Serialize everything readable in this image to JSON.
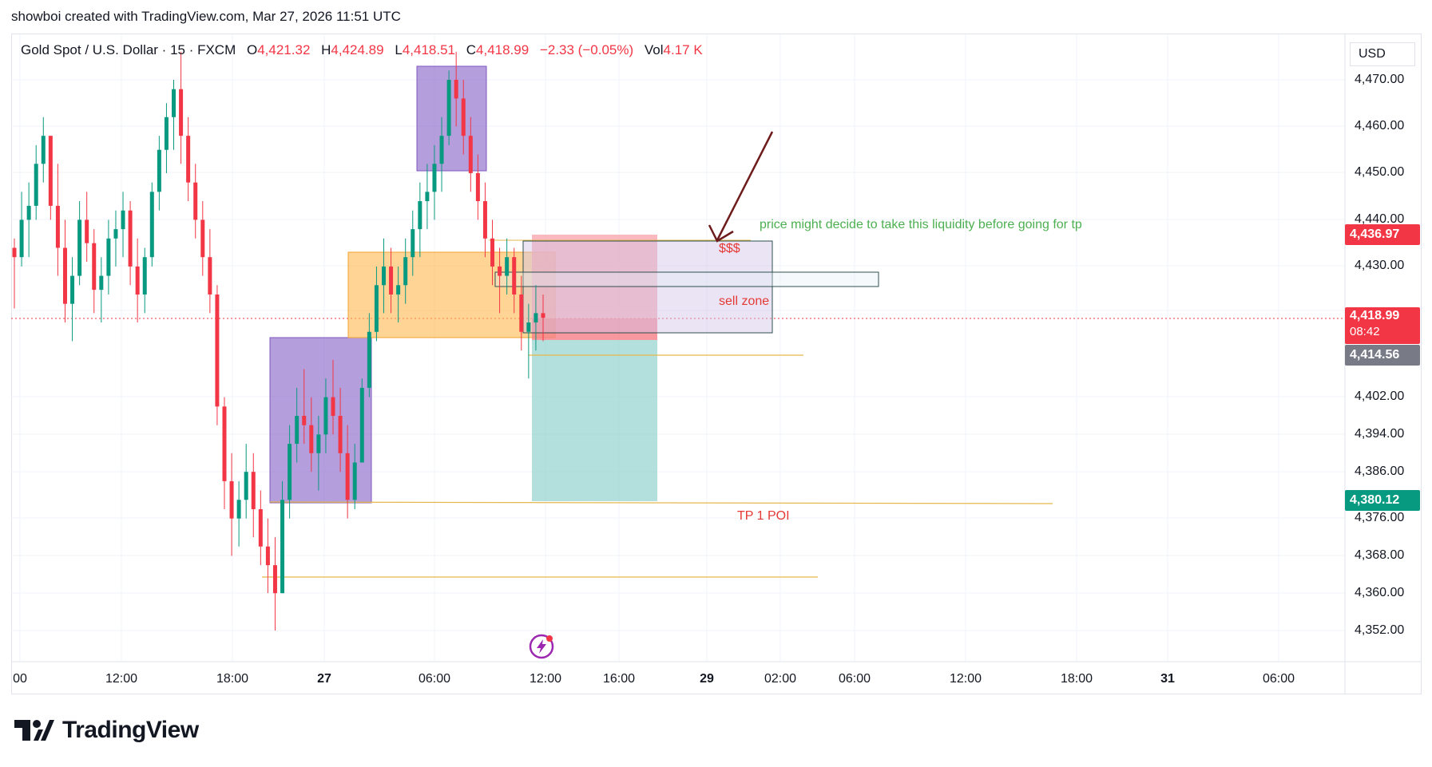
{
  "header": {
    "attribution": "showboi created with TradingView.com, Mar 27, 2026 11:51 UTC"
  },
  "symbol": {
    "name": "Gold Spot / U.S. Dollar · 15 · FXCM",
    "open_key": "O",
    "open": "4,421.32",
    "high_key": "H",
    "high": "4,424.89",
    "low_key": "L",
    "low": "4,418.51",
    "close_key": "C",
    "close": "4,418.99",
    "change": "−2.33 (−0.05%)",
    "vol_key": "Vol",
    "vol": "4.17 K"
  },
  "price_axis": {
    "currency": "USD",
    "ticks": [
      "4,470.00",
      "4,460.00",
      "4,450.00",
      "4,440.00",
      "4,430.00",
      "4,402.00",
      "4,394.00",
      "4,386.00",
      "4,376.00",
      "4,368.00",
      "4,360.00",
      "4,352.00"
    ],
    "tags": {
      "target": {
        "label": "4,436.97",
        "color": "#f23645"
      },
      "last": {
        "label": "4,418.99",
        "countdown": "08:42",
        "color": "#f23645"
      },
      "entry": {
        "label": "4,414.56",
        "color": "#787b86"
      },
      "tp": {
        "label": "4,380.12",
        "color": "#089981"
      }
    }
  },
  "time_axis": {
    "ticks": [
      "00",
      "12:00",
      "18:00",
      "27",
      "06:00",
      "12:00",
      "16:00",
      "29",
      "02:00",
      "06:00",
      "12:00",
      "18:00",
      "31",
      "06:00"
    ]
  },
  "annotations": {
    "liquidity_note": "price might decide to take this liquidity before going for tp",
    "dollars": "$$$",
    "sell_zone": "sell zone",
    "tp_label": "TP 1 POI"
  },
  "colors": {
    "up": "#089981",
    "down": "#f23645",
    "purple_box": "#9575cd",
    "orange_box": "#ffb74d",
    "tp_zone": "#80cbc4",
    "stop_zone": "#f7a1a8",
    "guide_line": "#e6b84d",
    "arrow": "#6d1b1b",
    "note_green": "#4caf50",
    "note_red": "#e53935"
  },
  "logo": {
    "text": "TradingView"
  },
  "chart_data": {
    "type": "candlestick",
    "symbol": "Gold Spot / U.S. Dollar",
    "interval": "15",
    "last_price": 4418.99,
    "ylim": [
      4348,
      4478
    ],
    "levels": {
      "target_liquidity": 4436.97,
      "entry": 4414.56,
      "tp1_poi": 4380.12
    },
    "candles_hlc_approx": [
      [
        4436,
        4421,
        4432
      ],
      [
        4446,
        4430,
        4440
      ],
      [
        4448,
        4432,
        4443
      ],
      [
        4456,
        4440,
        4452
      ],
      [
        4462,
        4448,
        4458
      ],
      [
        4458,
        4440,
        4443
      ],
      [
        4452,
        4428,
        4434
      ],
      [
        4440,
        4418,
        4422
      ],
      [
        4432,
        4414,
        4428
      ],
      [
        4444,
        4426,
        4440
      ],
      [
        4446,
        4431,
        4435
      ],
      [
        4438,
        4420,
        4425
      ],
      [
        4432,
        4418,
        4428
      ],
      [
        4440,
        4424,
        4436
      ],
      [
        4442,
        4430,
        4438
      ],
      [
        4446,
        4432,
        4442
      ],
      [
        4444,
        4426,
        4430
      ],
      [
        4436,
        4418,
        4424
      ],
      [
        4434,
        4420,
        4432
      ],
      [
        4448,
        4430,
        4446
      ],
      [
        4458,
        4442,
        4455
      ],
      [
        4465,
        4450,
        4462
      ],
      [
        4470,
        4455,
        4468
      ],
      [
        4476,
        4452,
        4458
      ],
      [
        4462,
        4444,
        4448
      ],
      [
        4452,
        4436,
        4440
      ],
      [
        4444,
        4428,
        4432
      ],
      [
        4438,
        4420,
        4424
      ],
      [
        4426,
        4396,
        4400
      ],
      [
        4402,
        4378,
        4384
      ],
      [
        4390,
        4368,
        4376
      ],
      [
        4384,
        4370,
        4380
      ],
      [
        4392,
        4376,
        4386
      ],
      [
        4390,
        4372,
        4378
      ],
      [
        4382,
        4366,
        4370
      ],
      [
        4376,
        4360,
        4366
      ],
      [
        4372,
        4352,
        4360
      ],
      [
        4384,
        4360,
        4380
      ],
      [
        4396,
        4376,
        4392
      ],
      [
        4404,
        4388,
        4398
      ],
      [
        4408,
        4392,
        4396
      ],
      [
        4402,
        4386,
        4390
      ],
      [
        4398,
        4382,
        4394
      ],
      [
        4406,
        4390,
        4402
      ],
      [
        4410,
        4394,
        4398
      ],
      [
        4404,
        4386,
        4390
      ],
      [
        4396,
        4376,
        4380
      ],
      [
        4392,
        4378,
        4388
      ],
      [
        4406,
        4388,
        4404
      ],
      [
        4420,
        4402,
        4416
      ],
      [
        4430,
        4414,
        4426
      ],
      [
        4436,
        4420,
        4430
      ],
      [
        4434,
        4420,
        4424
      ],
      [
        4430,
        4418,
        4426
      ],
      [
        4436,
        4422,
        4432
      ],
      [
        4442,
        4428,
        4438
      ],
      [
        4448,
        4432,
        4444
      ],
      [
        4452,
        4438,
        4446
      ],
      [
        4456,
        4440,
        4452
      ],
      [
        4462,
        4446,
        4458
      ],
      [
        4472,
        4456,
        4470
      ],
      [
        4476,
        4460,
        4466
      ],
      [
        4470,
        4454,
        4458
      ],
      [
        4462,
        4446,
        4450
      ],
      [
        4454,
        4440,
        4444
      ],
      [
        4448,
        4432,
        4436
      ],
      [
        4440,
        4426,
        4430
      ],
      [
        4434,
        4420,
        4428
      ],
      [
        4436,
        4424,
        4432
      ],
      [
        4434,
        4420,
        4424
      ],
      [
        4428,
        4412,
        4416
      ],
      [
        4422,
        4406,
        4418
      ],
      [
        4426,
        4412,
        4420
      ],
      [
        4424,
        4414,
        4419
      ]
    ]
  }
}
